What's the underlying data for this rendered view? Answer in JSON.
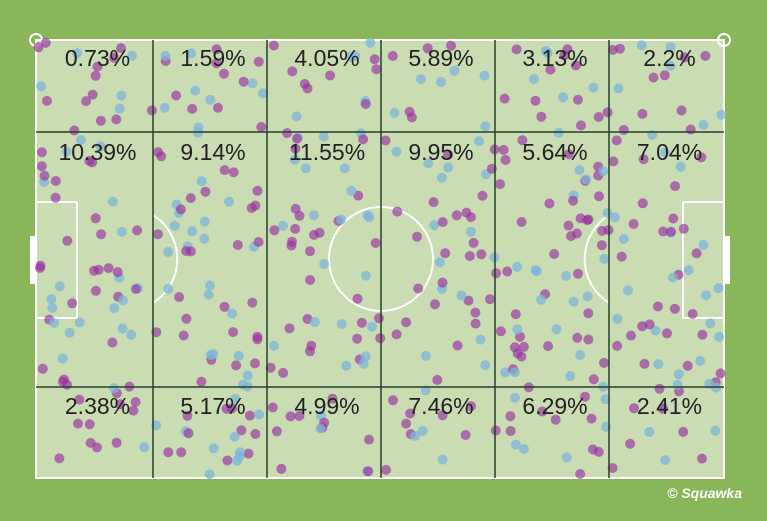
{
  "zones": [
    [
      "0.73%",
      "1.59%",
      "4.05%",
      "5.89%",
      "3.13%",
      "2.2%"
    ],
    [
      "10.39%",
      "9.14%",
      "11.55%",
      "9.95%",
      "5.64%",
      "7.04%"
    ],
    [
      "2.38%",
      "5.17%",
      "4.99%",
      "7.46%",
      "6.29%",
      "2.41%"
    ]
  ],
  "watermark": "© Squawka"
}
